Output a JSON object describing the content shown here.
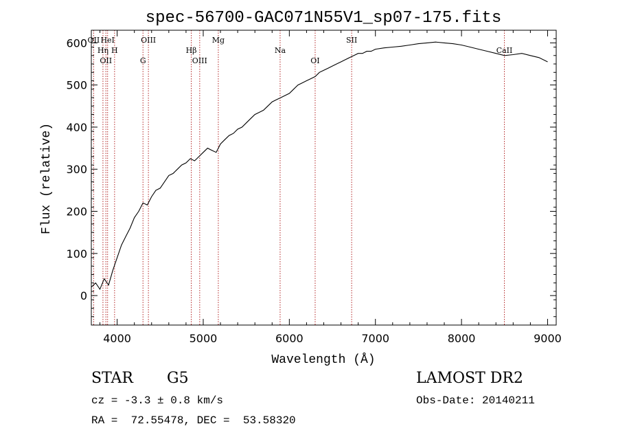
{
  "chart_data": {
    "type": "line",
    "title": "spec-56700-GAC071N55V1_sp07-175.fits",
    "xlabel": "Wavelength (Å)",
    "ylabel": "Flux (relative)",
    "xlim": [
      3700,
      9100
    ],
    "ylim": [
      -70,
      630
    ],
    "xticks": [
      4000,
      5000,
      6000,
      7000,
      8000,
      9000
    ],
    "yticks": [
      0,
      100,
      200,
      300,
      400,
      500,
      600
    ],
    "grid": false,
    "series": [
      {
        "x": [
          3700,
          3750,
          3800,
          3850,
          3900,
          3950,
          4000,
          4050,
          4100,
          4150,
          4200,
          4250,
          4300,
          4350,
          4400,
          4450,
          4500,
          4550,
          4600,
          4650,
          4700,
          4750,
          4800,
          4850,
          4900,
          4950,
          5000,
          5050,
          5100,
          5150,
          5200,
          5250,
          5300,
          5350,
          5400,
          5450,
          5500,
          5550,
          5600,
          5650,
          5700,
          5750,
          5800,
          5850,
          5900,
          5950,
          6000,
          6050,
          6100,
          6150,
          6200,
          6250,
          6300,
          6350,
          6400,
          6450,
          6500,
          6550,
          6600,
          6650,
          6700,
          6750,
          6800,
          6850,
          6900,
          6950,
          7000,
          7100,
          7200,
          7300,
          7400,
          7500,
          7600,
          7700,
          7800,
          7900,
          8000,
          8100,
          8200,
          8300,
          8400,
          8500,
          8600,
          8700,
          8800,
          8900,
          9000
        ],
        "values": [
          20,
          30,
          15,
          40,
          25,
          60,
          90,
          120,
          140,
          160,
          185,
          200,
          220,
          215,
          235,
          250,
          255,
          270,
          285,
          290,
          300,
          310,
          315,
          325,
          320,
          330,
          340,
          350,
          345,
          340,
          360,
          370,
          380,
          385,
          395,
          400,
          410,
          420,
          430,
          435,
          440,
          450,
          460,
          465,
          470,
          475,
          480,
          490,
          500,
          505,
          510,
          515,
          520,
          530,
          535,
          540,
          545,
          550,
          555,
          560,
          565,
          570,
          575,
          575,
          580,
          580,
          585,
          588,
          590,
          592,
          595,
          598,
          600,
          602,
          600,
          598,
          595,
          590,
          585,
          580,
          575,
          570,
          572,
          575,
          570,
          565,
          555
        ]
      }
    ],
    "features": [
      {
        "wave": 3727,
        "label": "OII"
      },
      {
        "wave": 3835,
        "label": "Hη"
      },
      {
        "wave": 3869,
        "label": "OII"
      },
      {
        "wave": 3889,
        "label": "HeI"
      },
      {
        "wave": 3970,
        "label": "H"
      },
      {
        "wave": 4300,
        "label": "G"
      },
      {
        "wave": 4363,
        "label": "OIII"
      },
      {
        "wave": 4861,
        "label": "Hβ"
      },
      {
        "wave": 4959,
        "label": "OIII"
      },
      {
        "wave": 5175,
        "label": "Mg"
      },
      {
        "wave": 5893,
        "label": "Na"
      },
      {
        "wave": 6300,
        "label": "OI"
      },
      {
        "wave": 6724,
        "label": "SII"
      },
      {
        "wave": 8498,
        "label": "CaII"
      }
    ]
  },
  "info": {
    "class": "STAR",
    "subclass": "G5",
    "survey": "LAMOST DR2",
    "cz": "cz = -3.3 ± 0.8 km/s",
    "obs_date": "Obs-Date: 20140211",
    "coords": "RA =  72.55478, DEC =  53.58320"
  },
  "colors": {
    "spectrum": "#000000",
    "feature_lines": "#b22222"
  }
}
